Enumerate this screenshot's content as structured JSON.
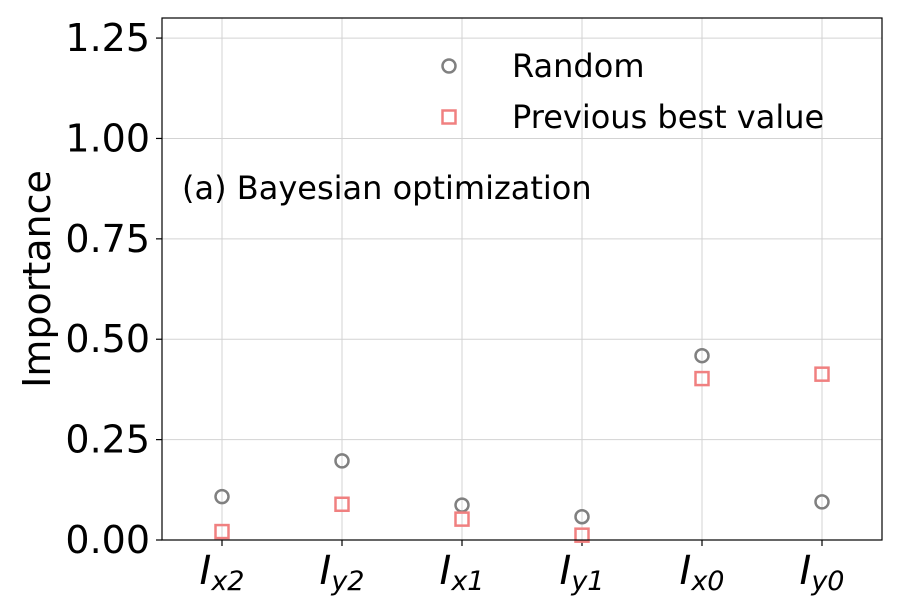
{
  "chart_data": {
    "type": "scatter",
    "categories": [
      "x2",
      "y2",
      "x1",
      "y1",
      "x0",
      "y0"
    ],
    "category_prefix": "I",
    "series": [
      {
        "name": "Random",
        "values": [
          0.108,
          0.197,
          0.087,
          0.058,
          0.459,
          0.095
        ]
      },
      {
        "name": "Previous best value",
        "values": [
          0.021,
          0.089,
          0.052,
          0.012,
          0.402,
          0.413
        ]
      }
    ],
    "title": "",
    "annotation": "(a) Bayesian optimization",
    "xlabel": "",
    "ylabel": "Importance",
    "ylim": [
      0.0,
      1.3
    ],
    "yticks": [
      "0.00",
      "0.25",
      "0.50",
      "0.75",
      "1.00",
      "1.25"
    ],
    "grid": true,
    "legend_position": "top-right",
    "colors": {
      "Random": "#808080",
      "Previous best value": "#f08080"
    }
  }
}
